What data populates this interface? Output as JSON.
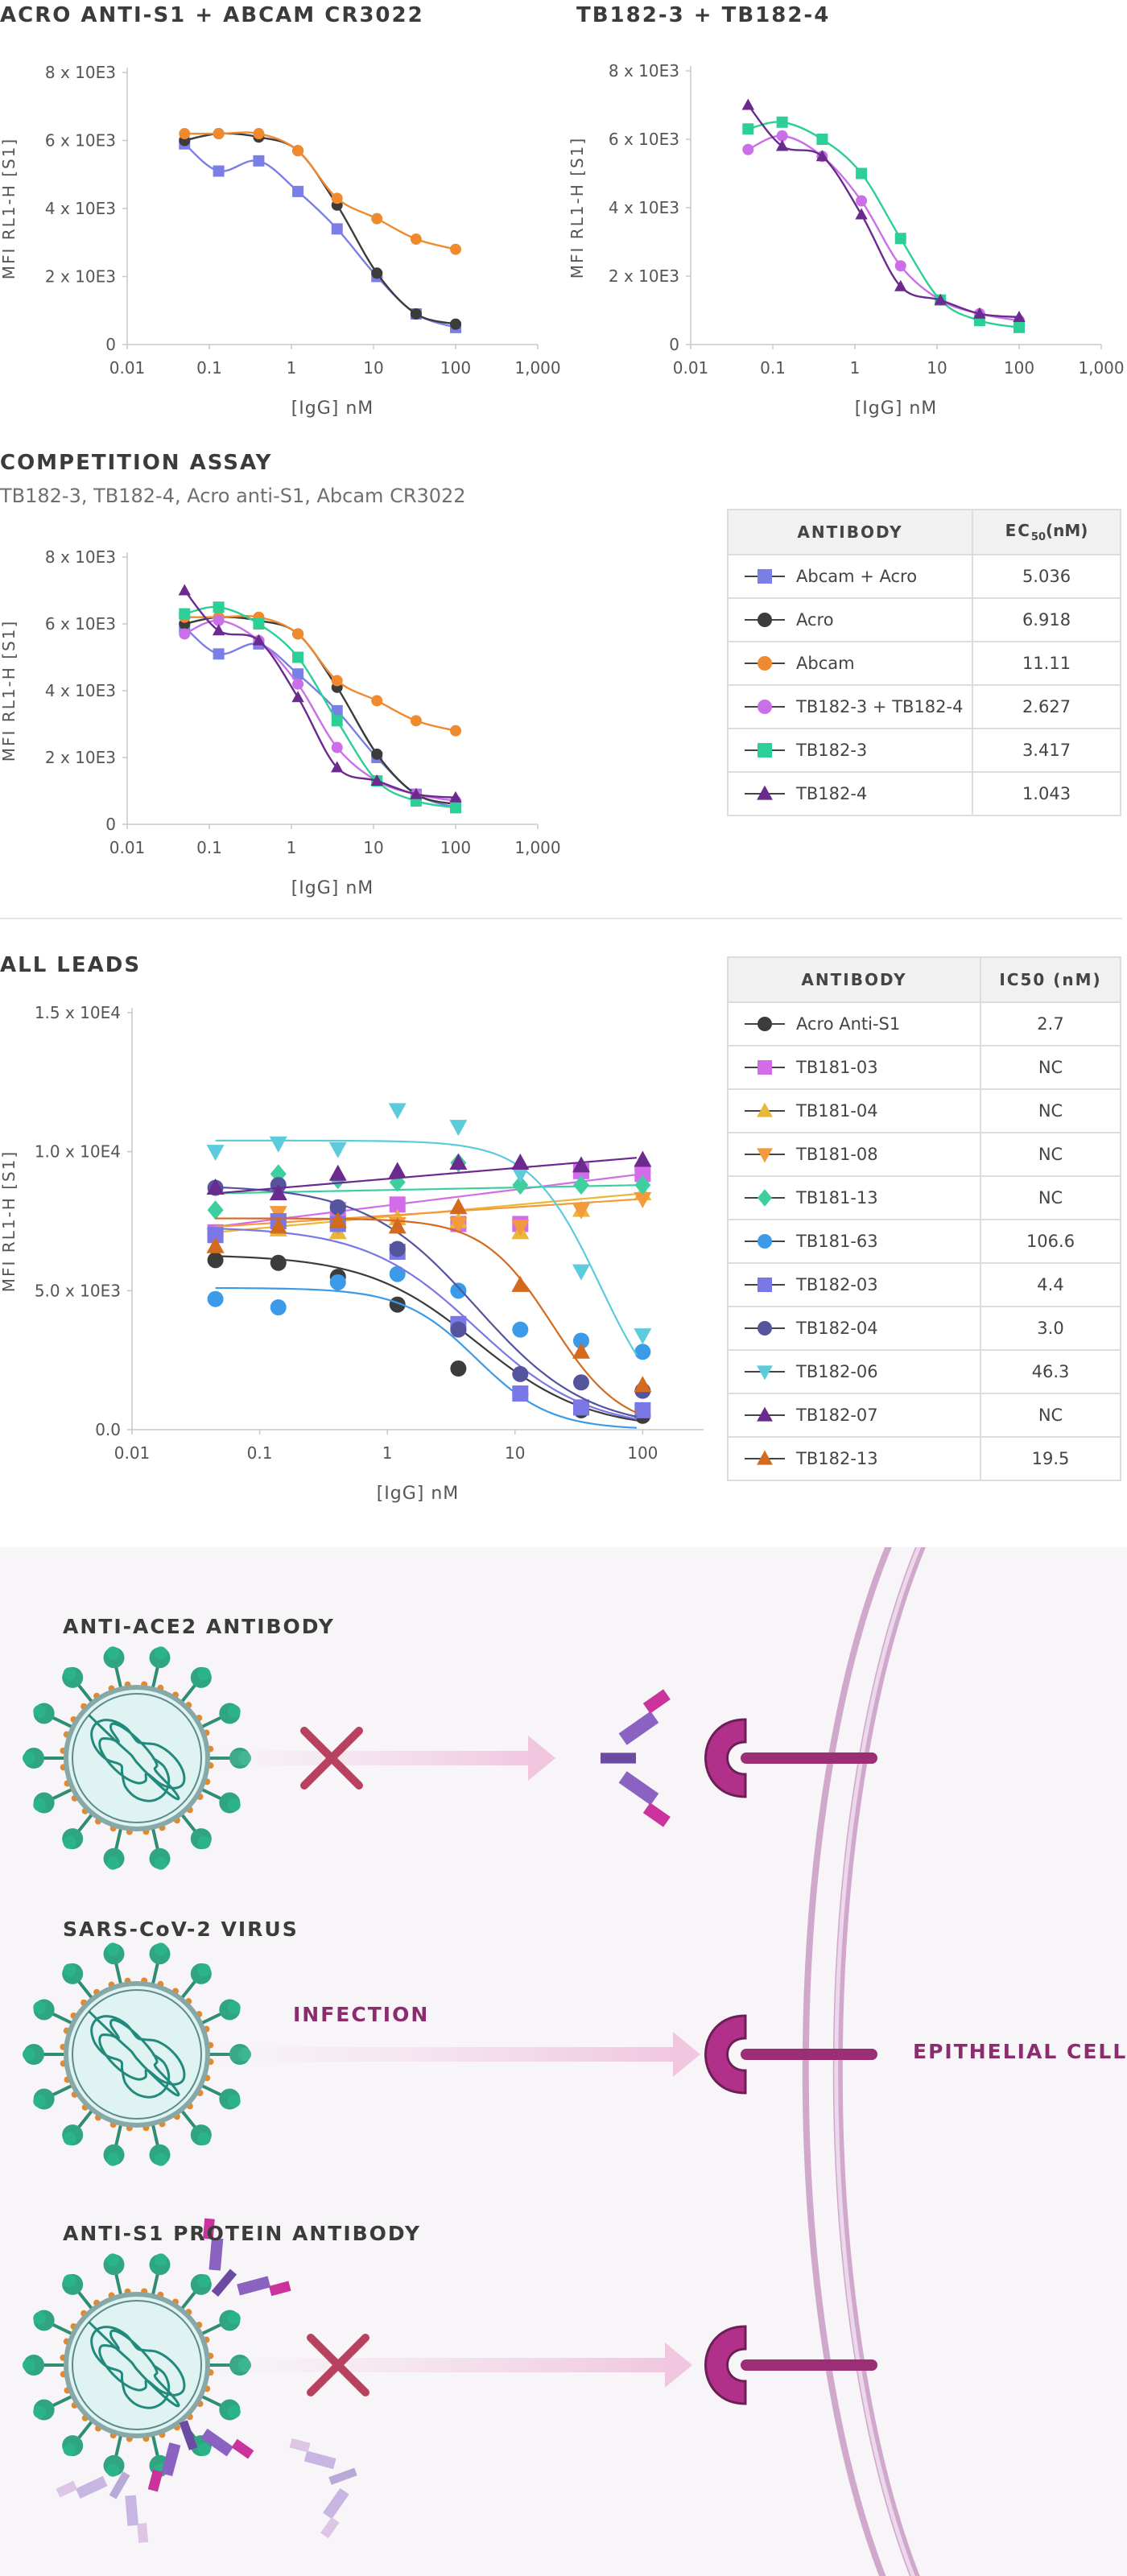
{
  "colors": {
    "abcam_acro": "#7a7fe8",
    "acro": "#3c3c3c",
    "abcam": "#f08a2e",
    "tb182_3_4": "#cb6fe8",
    "tb182_3": "#2ccf96",
    "tb182_4": "#6a2a8e",
    "acro_antis1": "#3c3c3c",
    "tb181_03": "#d36ce8",
    "tb181_04": "#e8b83a",
    "tb181_08": "#f29a3c",
    "tb181_13": "#3ecf9e",
    "tb181_63": "#3b9be8",
    "tb182_03": "#7a78e6",
    "tb182_04": "#55559e",
    "tb182_06": "#5ccbdc",
    "tb182_07": "#6a2a8e",
    "tb182_13": "#d46a1e",
    "accent": "#8b2c6e"
  },
  "icons": {
    "no_entry": "red-x-icon",
    "virus": "virus-icon",
    "antibody": "antibody-icon",
    "receptor": "ace2-receptor-icon",
    "arrow": "arrow-icon"
  },
  "chart_data": [
    {
      "id": "c1",
      "type": "line",
      "title": "ACRO ANTI-S1 + ABCAM CR3022",
      "xlabel": "[IgG] nM",
      "ylabel": "MFI RL1-H [S1]",
      "xscale": "log",
      "xlim": [
        0.01,
        1000
      ],
      "ylim": [
        0,
        8000
      ],
      "xticks": [
        0.01,
        0.1,
        1,
        10,
        100,
        1000
      ],
      "xtick_labels": [
        "0.01",
        "0.1",
        "1",
        "10",
        "100",
        "1,000"
      ],
      "yticks": [
        0,
        2000,
        4000,
        6000,
        8000
      ],
      "ytick_labels": [
        "0",
        "2 x 10E3",
        "4 x 10E3",
        "6 x 10E3",
        "8 x 10E3"
      ],
      "grid": false,
      "series": [
        {
          "color_key": "abcam_acro",
          "marker": "square",
          "x": [
            0.05,
            0.13,
            0.4,
            1.2,
            3.6,
            11,
            33,
            100
          ],
          "y": [
            5900,
            5100,
            5400,
            4500,
            3400,
            2000,
            900,
            500
          ]
        },
        {
          "color_key": "acro",
          "marker": "circle",
          "x": [
            0.05,
            0.13,
            0.4,
            1.2,
            3.6,
            11,
            33,
            100
          ],
          "y": [
            6000,
            6200,
            6100,
            5700,
            4100,
            2100,
            900,
            600
          ]
        },
        {
          "color_key": "abcam",
          "marker": "circle",
          "x": [
            0.05,
            0.13,
            0.4,
            1.2,
            3.6,
            11,
            33,
            100
          ],
          "y": [
            6200,
            6200,
            6200,
            5700,
            4300,
            3700,
            3100,
            2800
          ]
        }
      ]
    },
    {
      "id": "c2",
      "type": "line",
      "title": "TB182-3 + TB182-4",
      "xlabel": "[IgG] nM",
      "ylabel": "MFI RL1-H [S1]",
      "xscale": "log",
      "xlim": [
        0.01,
        1000
      ],
      "ylim": [
        0,
        8000
      ],
      "xticks": [
        0.01,
        0.1,
        1,
        10,
        100,
        1000
      ],
      "xtick_labels": [
        "0.01",
        "0.1",
        "1",
        "10",
        "100",
        "1,000"
      ],
      "yticks": [
        0,
        2000,
        4000,
        6000,
        8000
      ],
      "ytick_labels": [
        "0",
        "2 x 10E3",
        "4 x 10E3",
        "6 x 10E3",
        "8 x 10E3"
      ],
      "grid": false,
      "series": [
        {
          "color_key": "tb182_3_4",
          "marker": "circle",
          "x": [
            0.05,
            0.13,
            0.4,
            1.2,
            3.6,
            11,
            33,
            100
          ],
          "y": [
            5700,
            6100,
            5500,
            4200,
            2300,
            1300,
            900,
            700
          ]
        },
        {
          "color_key": "tb182_3",
          "marker": "square",
          "x": [
            0.05,
            0.13,
            0.4,
            1.2,
            3.6,
            11,
            33,
            100
          ],
          "y": [
            6300,
            6500,
            6000,
            5000,
            3100,
            1300,
            700,
            500
          ]
        },
        {
          "color_key": "tb182_4",
          "marker": "triangle",
          "x": [
            0.05,
            0.13,
            0.4,
            1.2,
            3.6,
            11,
            33,
            100
          ],
          "y": [
            7000,
            5800,
            5500,
            3800,
            1700,
            1300,
            900,
            800
          ]
        }
      ]
    },
    {
      "id": "c3",
      "type": "line",
      "title": "COMPETITION ASSAY",
      "subtitle": "TB182-3, TB182-4, Acro anti-S1, Abcam CR3022",
      "xlabel": "[IgG] nM",
      "ylabel": "MFI RL1-H [S1]",
      "xscale": "log",
      "xlim": [
        0.01,
        1000
      ],
      "ylim": [
        0,
        8000
      ],
      "xticks": [
        0.01,
        0.1,
        1,
        10,
        100,
        1000
      ],
      "xtick_labels": [
        "0.01",
        "0.1",
        "1",
        "10",
        "100",
        "1,000"
      ],
      "yticks": [
        0,
        2000,
        4000,
        6000,
        8000
      ],
      "ytick_labels": [
        "0",
        "2 x 10E3",
        "4 x 10E3",
        "6 x 10E3",
        "8 x 10E3"
      ],
      "grid": false,
      "legend": "right",
      "series": [
        {
          "name": "Abcam + Acro",
          "color_key": "abcam_acro",
          "marker": "square",
          "x": [
            0.05,
            0.13,
            0.4,
            1.2,
            3.6,
            11,
            33,
            100
          ],
          "y": [
            5900,
            5100,
            5400,
            4500,
            3400,
            2000,
            900,
            500
          ]
        },
        {
          "name": "Acro",
          "color_key": "acro",
          "marker": "circle",
          "x": [
            0.05,
            0.13,
            0.4,
            1.2,
            3.6,
            11,
            33,
            100
          ],
          "y": [
            6000,
            6200,
            6100,
            5700,
            4100,
            2100,
            900,
            600
          ]
        },
        {
          "name": "Abcam",
          "color_key": "abcam",
          "marker": "circle",
          "x": [
            0.05,
            0.13,
            0.4,
            1.2,
            3.6,
            11,
            33,
            100
          ],
          "y": [
            6200,
            6200,
            6200,
            5700,
            4300,
            3700,
            3100,
            2800
          ]
        },
        {
          "name": "TB182-3 + TB182-4",
          "color_key": "tb182_3_4",
          "marker": "circle",
          "x": [
            0.05,
            0.13,
            0.4,
            1.2,
            3.6,
            11,
            33,
            100
          ],
          "y": [
            5700,
            6100,
            5500,
            4200,
            2300,
            1300,
            900,
            700
          ]
        },
        {
          "name": "TB182-3",
          "color_key": "tb182_3",
          "marker": "square",
          "x": [
            0.05,
            0.13,
            0.4,
            1.2,
            3.6,
            11,
            33,
            100
          ],
          "y": [
            6300,
            6500,
            6000,
            5000,
            3100,
            1300,
            700,
            500
          ]
        },
        {
          "name": "TB182-4",
          "color_key": "tb182_4",
          "marker": "triangle",
          "x": [
            0.05,
            0.13,
            0.4,
            1.2,
            3.6,
            11,
            33,
            100
          ],
          "y": [
            7000,
            5800,
            5500,
            3800,
            1700,
            1300,
            900,
            800
          ]
        }
      ],
      "table": {
        "headers": [
          "ANTIBODY",
          "EC",
          "50",
          "(nM)"
        ],
        "rows": [
          {
            "name": "Abcam + Acro",
            "value": "5.036"
          },
          {
            "name": "Acro",
            "value": "6.918"
          },
          {
            "name": "Abcam",
            "value": "11.11"
          },
          {
            "name": "TB182-3 + TB182-4",
            "value": "2.627"
          },
          {
            "name": "TB182-3",
            "value": "3.417"
          },
          {
            "name": "TB182-4",
            "value": "1.043"
          }
        ]
      }
    },
    {
      "id": "c4",
      "type": "line",
      "title": "ALL LEADS",
      "xlabel": "[IgG] nM",
      "ylabel": "MFI RL1-H [S1]",
      "xscale": "log",
      "xlim": [
        0.01,
        300
      ],
      "ylim": [
        0,
        15000
      ],
      "xticks": [
        0.01,
        0.1,
        1,
        10,
        100
      ],
      "xtick_labels": [
        "0.01",
        "0.1",
        "1",
        "10",
        "100"
      ],
      "yticks": [
        0,
        5000,
        10000,
        15000
      ],
      "ytick_labels": [
        "0.0",
        "5.0 x 10E3",
        "1.0 x 10E4",
        "1.5 x 10E4"
      ],
      "grid": false,
      "legend": "right",
      "series": [
        {
          "name": "Acro Anti-S1",
          "color_key": "acro_antis1",
          "marker": "circle",
          "x": [
            0.045,
            0.14,
            0.41,
            1.2,
            3.6,
            11,
            33,
            100
          ],
          "y": [
            6100,
            6000,
            5500,
            4500,
            2200,
            1300,
            700,
            500
          ],
          "curve": [
            6300,
            4200,
            1.0
          ]
        },
        {
          "name": "TB181-03",
          "color_key": "tb181_03",
          "marker": "square",
          "x": [
            0.045,
            0.14,
            0.41,
            1.2,
            3.6,
            11,
            33,
            100
          ],
          "y": [
            7100,
            7500,
            7900,
            8100,
            7400,
            7400,
            9300,
            9200
          ],
          "curve": [
            7300,
            9200,
            3.0
          ]
        },
        {
          "name": "TB181-04",
          "color_key": "tb181_04",
          "marker": "triangle",
          "x": [
            0.045,
            0.14,
            0.41,
            1.2,
            3.6,
            11,
            33,
            100
          ],
          "y": [
            6600,
            7200,
            7100,
            7600,
            7500,
            7100,
            7900,
            8500
          ],
          "curve": [
            7100,
            8500,
            2.0
          ]
        },
        {
          "name": "TB181-08",
          "color_key": "tb181_08",
          "marker": "triangle-down",
          "x": [
            0.045,
            0.14,
            0.41,
            1.2,
            3.6,
            11,
            33,
            100
          ],
          "y": [
            7000,
            7800,
            7300,
            7400,
            7400,
            7300,
            7900,
            8300
          ],
          "curve": [
            7300,
            8300,
            2.0
          ]
        },
        {
          "name": "TB181-13",
          "color_key": "tb181_13",
          "marker": "diamond",
          "x": [
            0.045,
            0.14,
            0.41,
            1.2,
            3.6,
            11,
            33,
            100
          ],
          "y": [
            7900,
            9200,
            9000,
            8900,
            9600,
            8800,
            8800,
            8800
          ],
          "curve": [
            8500,
            8800,
            1.0
          ]
        },
        {
          "name": "TB181-63",
          "color_key": "tb181_63",
          "marker": "circle",
          "x": [
            0.045,
            0.14,
            0.41,
            1.2,
            3.6,
            11,
            33,
            100
          ],
          "y": [
            4700,
            4400,
            5300,
            5600,
            5000,
            3600,
            3200,
            2800
          ],
          "curve": [
            5100,
            2600,
            1.5
          ]
        },
        {
          "name": "TB182-03",
          "color_key": "tb182_03",
          "marker": "square",
          "x": [
            0.045,
            0.14,
            0.41,
            1.2,
            3.6,
            11,
            33,
            100
          ],
          "y": [
            7000,
            7500,
            7400,
            6400,
            3800,
            1300,
            800,
            700
          ],
          "curve": [
            7300,
            4400,
            1.0
          ]
        },
        {
          "name": "TB182-04",
          "color_key": "tb182_04",
          "marker": "circle",
          "x": [
            0.045,
            0.14,
            0.41,
            1.2,
            3.6,
            11,
            33,
            100
          ],
          "y": [
            8700,
            8800,
            8000,
            6500,
            3600,
            2000,
            1700,
            1400
          ],
          "curve": [
            8800,
            3000,
            1.0
          ]
        },
        {
          "name": "TB182-06",
          "color_key": "tb182_06",
          "marker": "triangle-down",
          "x": [
            0.045,
            0.14,
            0.41,
            1.2,
            3.6,
            11,
            33,
            100
          ],
          "y": [
            10000,
            10300,
            10100,
            11500,
            10900,
            9200,
            5700,
            3400
          ],
          "curve": [
            10400,
            46.3,
            1.6
          ]
        },
        {
          "name": "TB182-07",
          "color_key": "tb182_07",
          "marker": "triangle",
          "x": [
            0.045,
            0.14,
            0.41,
            1.2,
            3.6,
            11,
            33,
            100
          ],
          "y": [
            8700,
            8500,
            9200,
            9300,
            9600,
            9600,
            9500,
            9700
          ],
          "curve": [
            8500,
            9800,
            3.0
          ]
        },
        {
          "name": "TB182-13",
          "color_key": "tb182_13",
          "marker": "triangle",
          "x": [
            0.045,
            0.14,
            0.41,
            1.2,
            3.6,
            11,
            33,
            100
          ],
          "y": [
            6600,
            7300,
            7500,
            7300,
            8000,
            5200,
            2800,
            1600
          ],
          "curve": [
            7600,
            19.5,
            1.6
          ]
        }
      ],
      "table": {
        "headers": [
          "ANTIBODY",
          "IC50 (nM)"
        ],
        "rows": [
          {
            "name": "Acro Anti-S1",
            "value": "2.7"
          },
          {
            "name": "TB181-03",
            "value": "NC"
          },
          {
            "name": "TB181-04",
            "value": "NC"
          },
          {
            "name": "TB181-08",
            "value": "NC"
          },
          {
            "name": "TB181-13",
            "value": "NC"
          },
          {
            "name": "TB181-63",
            "value": "106.6"
          },
          {
            "name": "TB182-03",
            "value": "4.4"
          },
          {
            "name": "TB182-04",
            "value": "3.0"
          },
          {
            "name": "TB182-06",
            "value": "46.3"
          },
          {
            "name": "TB182-07",
            "value": "NC"
          },
          {
            "name": "TB182-13",
            "value": "19.5"
          }
        ]
      }
    }
  ],
  "diagram": {
    "ace2_title": "ANTI-ACE2 ANTIBODY",
    "virus_title": "SARS-CoV-2 VIRUS",
    "infection_label": "INFECTION",
    "cell_label": "EPITHELIAL CELL",
    "s1_title": "ANTI-S1 PROTEIN ANTIBODY"
  }
}
